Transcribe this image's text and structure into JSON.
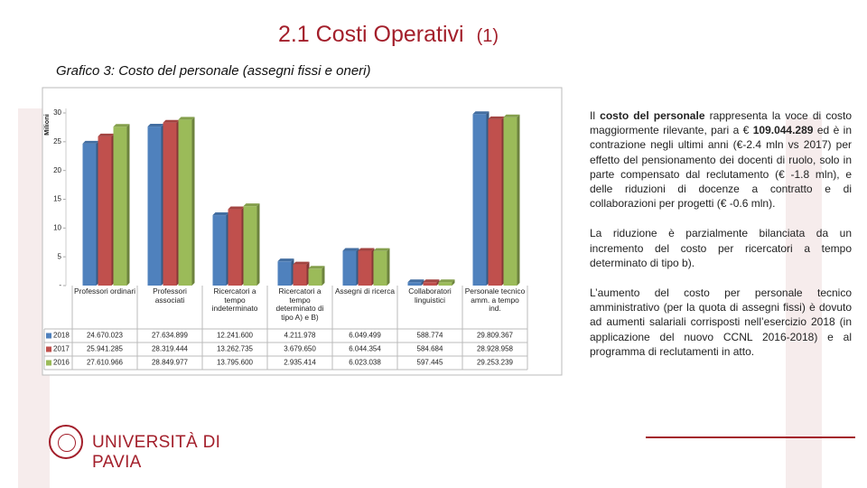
{
  "header": {
    "title": "2.1 Costi Operativi",
    "title_number": "(1)",
    "subtitle": "Grafico 3: Costo del personale (assegni fissi e oneri)"
  },
  "text": [
    [
      "Il ",
      "costo del personale",
      " rappresenta la voce di costo maggiormente rilevante, pari a € ",
      "109.044.289",
      " ed è in contrazione negli ultimi anni (€-2.4 mln vs 2017) per effetto del pensionamento dei docenti di ruolo, solo in parte compensato dal reclutamento (€ -1.8 mln), e delle riduzioni di docenze a contratto e di collaborazioni per progetti (€ -0.6 mln)."
    ],
    "La riduzione è parzialmente bilanciata da un incremento del costo per ricercatori a tempo determinato di tipo b).",
    "L’aumento del costo per personale tecnico amministrativo (per la quota di assegni fissi) è dovuto ad aumenti salariali corrisposti nell’esercizio 2018 (in applicazione del nuovo CCNL 2016-2018) e al programma di reclutamenti in atto."
  ],
  "footer": {
    "logo": "UNIVERSITÀ DI PAVIA"
  },
  "chart_data": {
    "type": "bar",
    "y_label": "Milioni",
    "categories": [
      "Professori ordinari",
      "Professori associati",
      "Ricercatori a tempo indeterminato",
      "Ricercatori a tempo determinato di tipo A) e B)",
      "Assegni di ricerca",
      "Collaboratori linguistici",
      "Personale tecnico amm. a tempo ind."
    ],
    "series": [
      {
        "name": "2018",
        "color": "#4f81bd",
        "values": [
          24.670023,
          27.634899,
          12.2416,
          4.211978,
          6.049499,
          0.588774,
          29.809367
        ],
        "value_labels": [
          "24.670.023",
          "27.634.899",
          "12.241.600",
          "4.211.978",
          "6.049.499",
          "588.774",
          "29.809.367"
        ]
      },
      {
        "name": "2017",
        "color": "#c0504d",
        "values": [
          25.941285,
          28.319444,
          13.262735,
          3.67965,
          6.044354,
          0.584684,
          28.928958
        ],
        "value_labels": [
          "25.941.285",
          "28.319.444",
          "13.262.735",
          "3.679.650",
          "6.044.354",
          "584.684",
          "28.928.958"
        ]
      },
      {
        "name": "2016",
        "color": "#9bbb59",
        "values": [
          27.610966,
          28.849977,
          13.7956,
          2.935414,
          6.023038,
          0.597445,
          29.253239
        ],
        "value_labels": [
          "27.610.966",
          "28.849.977",
          "13.795.600",
          "2.935.414",
          "6.023.038",
          "597.445",
          "29.253.239"
        ]
      }
    ],
    "ylim": [
      0,
      30
    ],
    "yticks": [
      {
        "value": 0,
        "label": "-"
      },
      5,
      10,
      15,
      20,
      25,
      30
    ],
    "grid": false
  }
}
